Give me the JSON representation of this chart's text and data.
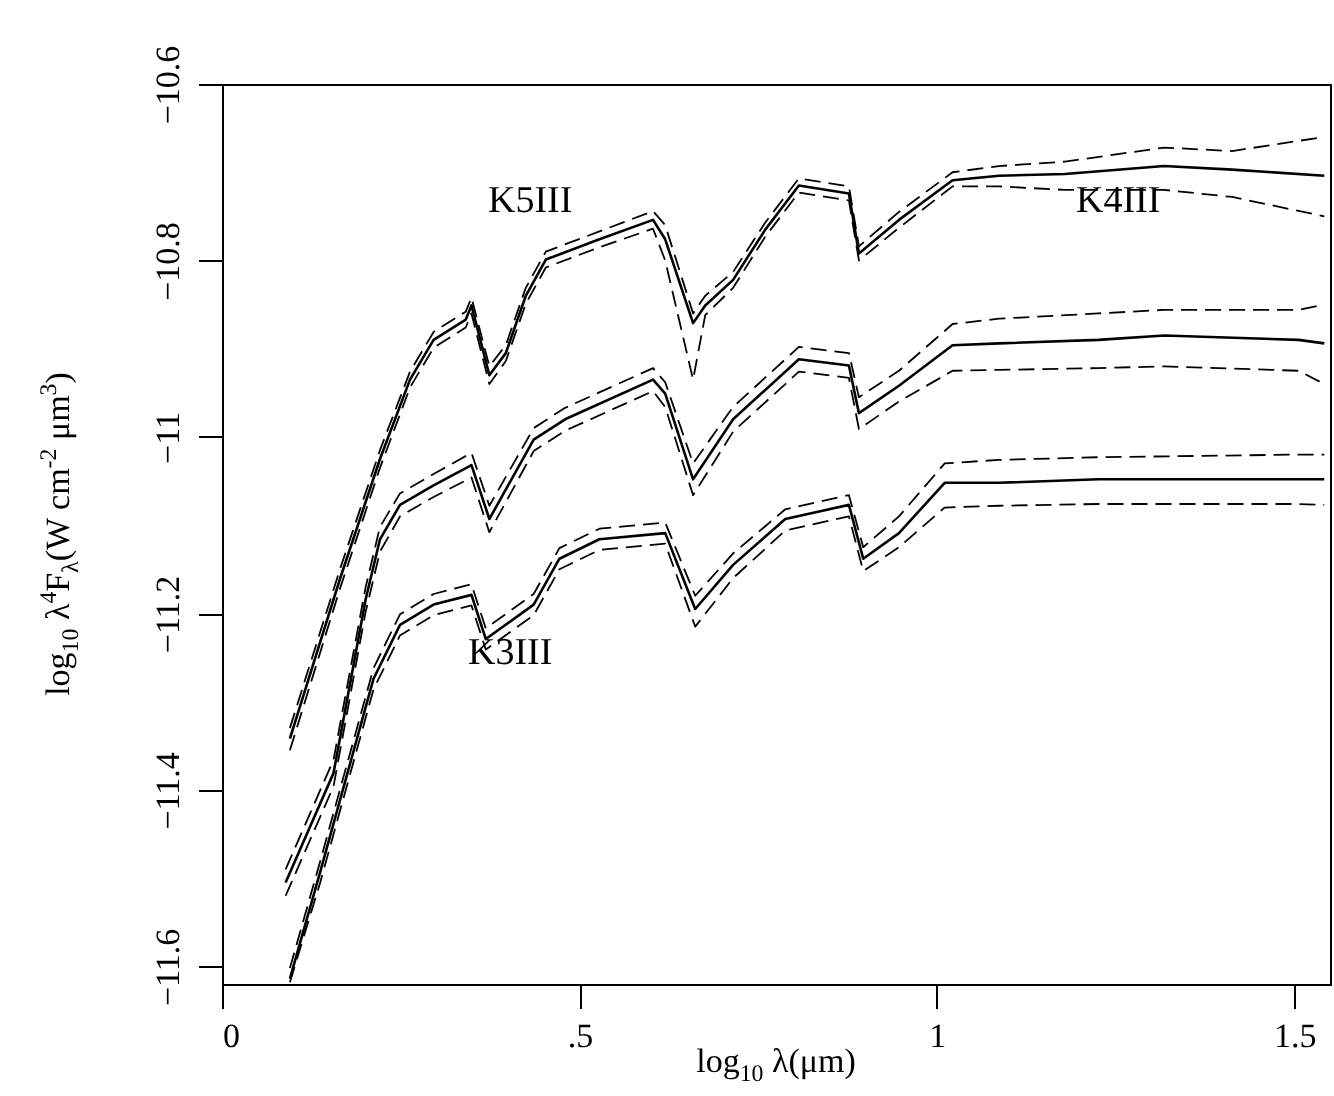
{
  "chart_data": {
    "type": "line",
    "xlabel": "log$_{10}$ λ(μm)",
    "ylabel": "log$_{10}$ λ$^{4}$F$_{λ}$(W cm$^{-2}$ μm$^{3}$)",
    "xlim": [
      0,
      1.55
    ],
    "ylim": [
      -11.62,
      -10.6
    ],
    "xticks": [
      0,
      {
        "value": 0.5,
        "label": ".5"
      },
      1,
      1.5
    ],
    "yticks": [
      -11.6,
      -11.4,
      -11.2,
      -11,
      -10.8,
      -10.6
    ],
    "grid": false,
    "annotations": [
      "K5III",
      "K4III",
      "K3III"
    ],
    "series": [
      {
        "color": "#000000",
        "line_style": "solid",
        "x": [
          0.095,
          0.165,
          0.221,
          0.263,
          0.296,
          0.341,
          0.349,
          0.374,
          0.397,
          0.425,
          0.453,
          0.528,
          0.603,
          0.62,
          0.659,
          0.676,
          0.715,
          0.76,
          0.807,
          0.877,
          0.891,
          0.947,
          1.022,
          1.087,
          1.179,
          1.318,
          1.413,
          1.542
        ],
        "values": [
          -11.342,
          -11.161,
          -11.025,
          -10.935,
          -10.89,
          -10.867,
          -10.851,
          -10.93,
          -10.905,
          -10.84,
          -10.799,
          -10.776,
          -10.754,
          -10.776,
          -10.871,
          -10.851,
          -10.822,
          -10.765,
          -10.715,
          -10.724,
          -10.792,
          -10.754,
          -10.709,
          -10.704,
          -10.702,
          -10.693,
          -10.697,
          -10.704
        ]
      },
      {
        "color": "#000000",
        "line_style": "dashed",
        "x": [
          0.095,
          0.165,
          0.221,
          0.263,
          0.296,
          0.341,
          0.349,
          0.374,
          0.397,
          0.425,
          0.453,
          0.528,
          0.603,
          0.62,
          0.659,
          0.676,
          0.715,
          0.76,
          0.807,
          0.877,
          0.891,
          0.947,
          1.022,
          1.087,
          1.179,
          1.318,
          1.413,
          1.542
        ],
        "values": [
          -11.355,
          -11.172,
          -11.035,
          -10.944,
          -10.899,
          -10.876,
          -10.86,
          -10.94,
          -10.914,
          -10.849,
          -10.808,
          -10.785,
          -10.764,
          -10.8,
          -10.935,
          -10.862,
          -10.831,
          -10.773,
          -10.723,
          -10.732,
          -10.8,
          -10.763,
          -10.716,
          -10.716,
          -10.72,
          -10.72,
          -10.728,
          -10.75
        ]
      },
      {
        "color": "#000000",
        "line_style": "dashed",
        "x": [
          0.095,
          0.165,
          0.221,
          0.263,
          0.296,
          0.341,
          0.349,
          0.374,
          0.397,
          0.425,
          0.453,
          0.528,
          0.603,
          0.62,
          0.659,
          0.676,
          0.715,
          0.76,
          0.807,
          0.877,
          0.891,
          0.947,
          1.022,
          1.087,
          1.179,
          1.318,
          1.413,
          1.542
        ],
        "values": [
          -11.33,
          -11.15,
          -11.015,
          -10.926,
          -10.881,
          -10.858,
          -10.842,
          -10.92,
          -10.896,
          -10.831,
          -10.79,
          -10.767,
          -10.744,
          -10.76,
          -10.86,
          -10.84,
          -10.813,
          -10.757,
          -10.707,
          -10.716,
          -10.784,
          -10.745,
          -10.7,
          -10.693,
          -10.688,
          -10.672,
          -10.676,
          -10.66
        ]
      },
      {
        "color": "#000000",
        "line_style": "solid",
        "x": [
          0.089,
          0.156,
          0.201,
          0.221,
          0.249,
          0.296,
          0.349,
          0.374,
          0.436,
          0.48,
          0.603,
          0.62,
          0.659,
          0.715,
          0.807,
          0.877,
          0.891,
          0.947,
          1.022,
          1.087,
          1.226,
          1.318,
          1.506,
          1.542
        ],
        "values": [
          -11.505,
          -11.381,
          -11.184,
          -11.116,
          -11.077,
          -11.055,
          -11.032,
          -11.093,
          -11.003,
          -10.98,
          -10.935,
          -10.951,
          -11.048,
          -10.98,
          -10.912,
          -10.919,
          -10.973,
          -10.942,
          -10.896,
          -10.894,
          -10.89,
          -10.885,
          -10.89,
          -10.894
        ]
      },
      {
        "color": "#000000",
        "line_style": "dashed",
        "x": [
          0.089,
          0.156,
          0.201,
          0.221,
          0.249,
          0.296,
          0.349,
          0.374,
          0.436,
          0.48,
          0.603,
          0.62,
          0.659,
          0.715,
          0.807,
          0.877,
          0.891,
          0.947,
          1.022,
          1.087,
          1.226,
          1.318,
          1.506,
          1.542
        ],
        "values": [
          -11.52,
          -11.396,
          -11.198,
          -11.13,
          -11.09,
          -11.068,
          -11.046,
          -11.108,
          -11.016,
          -10.993,
          -10.948,
          -10.966,
          -11.066,
          -10.994,
          -10.926,
          -10.933,
          -10.991,
          -10.96,
          -10.925,
          -10.924,
          -10.922,
          -10.92,
          -10.925,
          -10.94
        ]
      },
      {
        "color": "#000000",
        "line_style": "dashed",
        "x": [
          0.089,
          0.156,
          0.201,
          0.221,
          0.249,
          0.296,
          0.349,
          0.374,
          0.436,
          0.48,
          0.603,
          0.62,
          0.659,
          0.715,
          0.807,
          0.877,
          0.891,
          0.947,
          1.022,
          1.087,
          1.226,
          1.318,
          1.506,
          1.542
        ],
        "values": [
          -11.49,
          -11.366,
          -11.17,
          -11.102,
          -11.064,
          -11.042,
          -11.018,
          -11.078,
          -10.99,
          -10.967,
          -10.922,
          -10.938,
          -11.03,
          -10.966,
          -10.898,
          -10.905,
          -10.955,
          -10.925,
          -10.872,
          -10.866,
          -10.86,
          -10.856,
          -10.856,
          -10.85
        ]
      },
      {
        "color": "#000000",
        "line_style": "solid",
        "x": [
          0.095,
          0.137,
          0.212,
          0.249,
          0.296,
          0.349,
          0.369,
          0.436,
          0.472,
          0.528,
          0.62,
          0.662,
          0.715,
          0.788,
          0.877,
          0.897,
          0.947,
          1.011,
          1.087,
          1.226,
          1.506,
          1.542
        ],
        "values": [
          -11.614,
          -11.494,
          -11.274,
          -11.213,
          -11.19,
          -11.179,
          -11.229,
          -11.19,
          -11.138,
          -11.116,
          -11.109,
          -11.195,
          -11.145,
          -11.093,
          -11.077,
          -11.138,
          -11.109,
          -11.052,
          -11.052,
          -11.048,
          -11.048,
          -11.048
        ]
      },
      {
        "color": "#000000",
        "line_style": "dashed",
        "x": [
          0.095,
          0.137,
          0.212,
          0.249,
          0.296,
          0.349,
          0.369,
          0.436,
          0.472,
          0.528,
          0.62,
          0.662,
          0.715,
          0.788,
          0.877,
          0.897,
          0.947,
          1.011,
          1.087,
          1.226,
          1.506,
          1.542
        ],
        "values": [
          -11.618,
          -11.506,
          -11.286,
          -11.225,
          -11.202,
          -11.191,
          -11.241,
          -11.202,
          -11.15,
          -11.128,
          -11.121,
          -11.215,
          -11.16,
          -11.106,
          -11.09,
          -11.152,
          -11.125,
          -11.08,
          -11.078,
          -11.076,
          -11.076,
          -11.077
        ]
      },
      {
        "color": "#000000",
        "line_style": "dashed",
        "x": [
          0.095,
          0.137,
          0.212,
          0.249,
          0.296,
          0.349,
          0.369,
          0.436,
          0.472,
          0.528,
          0.62,
          0.662,
          0.715,
          0.788,
          0.877,
          0.897,
          0.947,
          1.011,
          1.087,
          1.226,
          1.506,
          1.542
        ],
        "values": [
          -11.602,
          -11.482,
          -11.262,
          -11.201,
          -11.178,
          -11.167,
          -11.217,
          -11.178,
          -11.126,
          -11.104,
          -11.097,
          -11.18,
          -11.132,
          -11.082,
          -11.066,
          -11.125,
          -11.09,
          -11.03,
          -11.026,
          -11.023,
          -11.02,
          -11.02
        ]
      }
    ]
  }
}
